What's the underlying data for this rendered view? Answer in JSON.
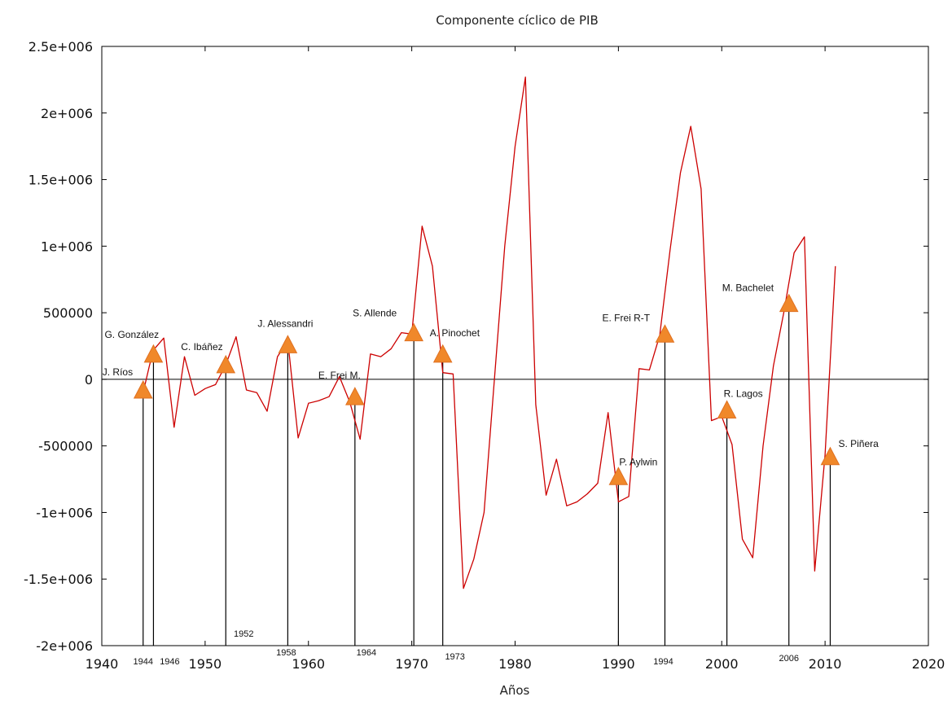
{
  "chart_data": {
    "type": "line",
    "title": "Componente cíclico de PIB",
    "xlabel": "Años",
    "ylabel": "",
    "xlim": [
      1940,
      2020
    ],
    "ylim": [
      -2000000,
      2500000
    ],
    "x_ticks": [
      1940,
      1950,
      1960,
      1970,
      1980,
      1990,
      2000,
      2010,
      2020
    ],
    "x_tick_labels": [
      "1940",
      "1950",
      "1960",
      "1970",
      "1980",
      "1990",
      "2000",
      "2010",
      "2020"
    ],
    "y_ticks": [
      2500000,
      2000000,
      1500000,
      1000000,
      500000,
      0,
      -500000,
      -1000000,
      -1500000,
      -2000000
    ],
    "y_tick_labels": [
      "2.5e+006",
      "2e+006",
      "1.5e+006",
      "1e+006",
      "500000",
      "0",
      "-500000",
      "-1e+006",
      "-1.5e+006",
      "-2e+006"
    ],
    "grid": false,
    "series": [
      {
        "color": "#cc0000",
        "x": [
          1944,
          1944.6,
          1945,
          1946,
          1947,
          1948,
          1949,
          1950,
          1951,
          1952,
          1953,
          1954,
          1955,
          1956,
          1957,
          1958,
          1959,
          1960,
          1961,
          1962,
          1963,
          1964,
          1965,
          1966,
          1967,
          1968,
          1969,
          1970,
          1971,
          1972,
          1973,
          1974,
          1975,
          1976,
          1977,
          1978,
          1979,
          1980,
          1981,
          1982,
          1983,
          1984,
          1985,
          1986,
          1987,
          1988,
          1989,
          1990,
          1991,
          1992,
          1993,
          1994,
          1995,
          1996,
          1997,
          1998,
          1999,
          2000,
          2001,
          2002,
          2003,
          2004,
          2005,
          2006,
          2007,
          2008,
          2009,
          2010,
          2011
        ],
        "values": [
          -100000,
          100000,
          220000,
          310000,
          -360000,
          170000,
          -120000,
          -70000,
          -40000,
          110000,
          320000,
          -80000,
          -100000,
          -240000,
          170000,
          290000,
          -440000,
          -180000,
          -160000,
          -130000,
          20000,
          -170000,
          -450000,
          190000,
          170000,
          230000,
          350000,
          340000,
          1150000,
          850000,
          50000,
          40000,
          -1570000,
          -1350000,
          -1000000,
          0,
          1000000,
          1750000,
          2270000,
          -190000,
          -870000,
          -600000,
          -950000,
          -920000,
          -860000,
          -780000,
          -250000,
          -920000,
          -880000,
          80000,
          70000,
          330000,
          970000,
          1550000,
          1900000,
          1430000,
          -310000,
          -280000,
          -490000,
          -1200000,
          -1340000,
          -500000,
          100000,
          500000,
          950000,
          1070000,
          -1440000,
          -570000,
          850000
        ]
      }
    ],
    "annotations": [
      {
        "year": 1944,
        "name": "J. Ríos",
        "value": -80000,
        "year_label": "1944"
      },
      {
        "year": 1945,
        "name": "G. González",
        "value": 190000,
        "year_label": "1946"
      },
      {
        "year": 1952,
        "name": "C. Ibáñez",
        "value": 110000,
        "year_label": "1952"
      },
      {
        "year": 1958,
        "name": "J. Alessandri",
        "value": 260000,
        "year_label": "1958"
      },
      {
        "year": 1964.5,
        "name": "E. Frei M.",
        "value": -130000,
        "year_label": "1964"
      },
      {
        "year": 1970.2,
        "name": "S. Allende",
        "value": 350000,
        "year_label": "1970"
      },
      {
        "year": 1973,
        "name": "A. Pinochet",
        "value": 190000,
        "year_label": "1973"
      },
      {
        "year": 1990,
        "name": "P. Aylwin",
        "value": -730000,
        "year_label": "1990"
      },
      {
        "year": 1994.5,
        "name": "E. Frei R-T",
        "value": 340000,
        "year_label": "1994"
      },
      {
        "year": 2000.5,
        "name": "R. Lagos",
        "value": -230000,
        "year_label": "2000"
      },
      {
        "year": 2006.5,
        "name": "M. Bachelet",
        "value": 570000,
        "year_label": "2006"
      },
      {
        "year": 2010.5,
        "name": "S. Piñera",
        "value": -580000,
        "year_label": "2010"
      }
    ]
  }
}
